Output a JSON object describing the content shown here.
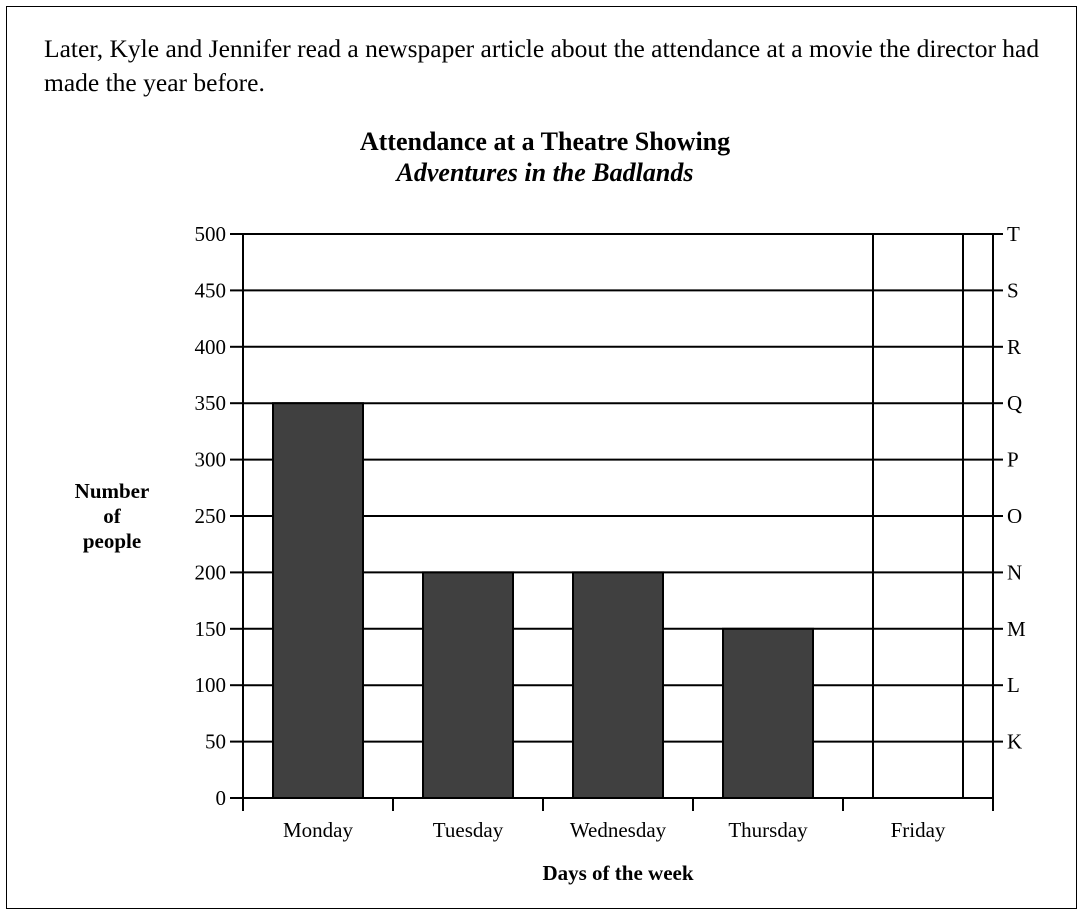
{
  "intro_text": "Later, Kyle and Jennifer read a newspaper article about the attendance at a movie the director had made the year before.",
  "chart_data": {
    "type": "bar",
    "title": "Attendance at a Theatre Showing",
    "subtitle": "Adventures in the Badlands",
    "categories": [
      "Monday",
      "Tuesday",
      "Wednesday",
      "Thursday",
      "Friday"
    ],
    "values": [
      350,
      200,
      200,
      150,
      null
    ],
    "ylabel_lines": [
      "Number",
      "of",
      "people"
    ],
    "xlabel": "Days of the week",
    "ylim": [
      0,
      500
    ],
    "y_ticks": [
      0,
      50,
      100,
      150,
      200,
      250,
      300,
      350,
      400,
      450,
      500
    ],
    "right_tick_labels": [
      "K",
      "L",
      "M",
      "N",
      "O",
      "P",
      "Q",
      "R",
      "S",
      "T"
    ],
    "grid": true,
    "bar_color": "#404040"
  }
}
